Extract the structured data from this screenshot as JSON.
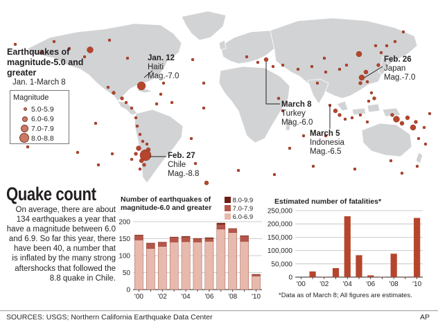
{
  "map": {
    "title": "Earthquakes of magnitude-5.0 and greater",
    "subtitle": "Jan. 1-March 8",
    "legend": {
      "title": "Magnitude",
      "items": [
        "5.0-5.9",
        "6.0-6.9",
        "7.0-7.9",
        "8.0-8.8"
      ]
    },
    "callouts": [
      {
        "date": "Jan. 12",
        "place": "Haiti",
        "mag": "Mag.-7.0"
      },
      {
        "date": "Feb. 27",
        "place": "Chile",
        "mag": "Mag.-8.8"
      },
      {
        "date": "March 8",
        "place": "Turkey",
        "mag": "Mag.-6.0"
      },
      {
        "date": "March 5",
        "place": "Indonesia",
        "mag": "Mag.-6.5"
      },
      {
        "date": "Feb. 26",
        "place": "Japan",
        "mag": "Mag.-7.0"
      }
    ],
    "colors": {
      "ocean": "#ffffff",
      "land": "#d2d3d5",
      "quake": "#b5452c"
    }
  },
  "quake_count": {
    "title": "Quake count",
    "body": "On average, there are about 134 earthquakes a year that have a magnitude between 6.0 and 6.9. So far this year, there have been 40, a number that is inflated by the many strong aftershocks that followed the 8.8 quake in Chile."
  },
  "footnote": "*Data as of March 8; All figures are estimates.",
  "sources": "SOURCES: USGS; Northern California Earthquake Data Center",
  "credit": "AP",
  "chart_data": [
    {
      "type": "bar",
      "stacked": true,
      "title": "Number of earthquakes of magnitude-6.0 and greater",
      "categories": [
        "2000",
        "2001",
        "2002",
        "2003",
        "2004",
        "2005",
        "2006",
        "2007",
        "2008",
        "2009",
        "2010"
      ],
      "tick_labels": [
        "'00",
        "",
        "'02",
        "",
        "'04",
        "",
        "'06",
        "",
        "'08",
        "",
        "'10"
      ],
      "ylim": [
        0,
        200
      ],
      "yticks": [
        0,
        50,
        100,
        150,
        200
      ],
      "grid": true,
      "legend_position": "top-right",
      "series": [
        {
          "name": "6.0-6.9",
          "color": "#e8b9ad",
          "values": [
            146,
            121,
            127,
            140,
            141,
            140,
            142,
            178,
            168,
            142,
            40
          ]
        },
        {
          "name": "7.0-7.9",
          "color": "#b5564a",
          "values": [
            14,
            15,
            13,
            14,
            14,
            10,
            9,
            14,
            12,
            16,
            4
          ]
        },
        {
          "name": "8.0-9.9",
          "color": "#6b1e14",
          "values": [
            1,
            1,
            0,
            1,
            2,
            1,
            2,
            4,
            0,
            1,
            1
          ]
        }
      ]
    },
    {
      "type": "bar",
      "title": "Estimated number of fatalities*",
      "categories": [
        "2000",
        "2001",
        "2002",
        "2003",
        "2004",
        "2005",
        "2006",
        "2007",
        "2008",
        "2009",
        "2010"
      ],
      "tick_labels": [
        "'00",
        "",
        "'02",
        "",
        "'04",
        "",
        "'06",
        "",
        "'08",
        "",
        "'10"
      ],
      "ylim": [
        0,
        250000
      ],
      "yticks": [
        0,
        50000,
        100000,
        150000,
        200000,
        250000
      ],
      "ytick_labels": [
        "0",
        "50,000",
        "100,000",
        "150,000",
        "200,000",
        "250,000"
      ],
      "grid": true,
      "series": [
        {
          "name": "",
          "color": "#b5452c",
          "values": [
            231,
            21357,
            1685,
            33819,
            228802,
            82364,
            6605,
            712,
            88011,
            1790,
            222570
          ]
        }
      ]
    }
  ]
}
